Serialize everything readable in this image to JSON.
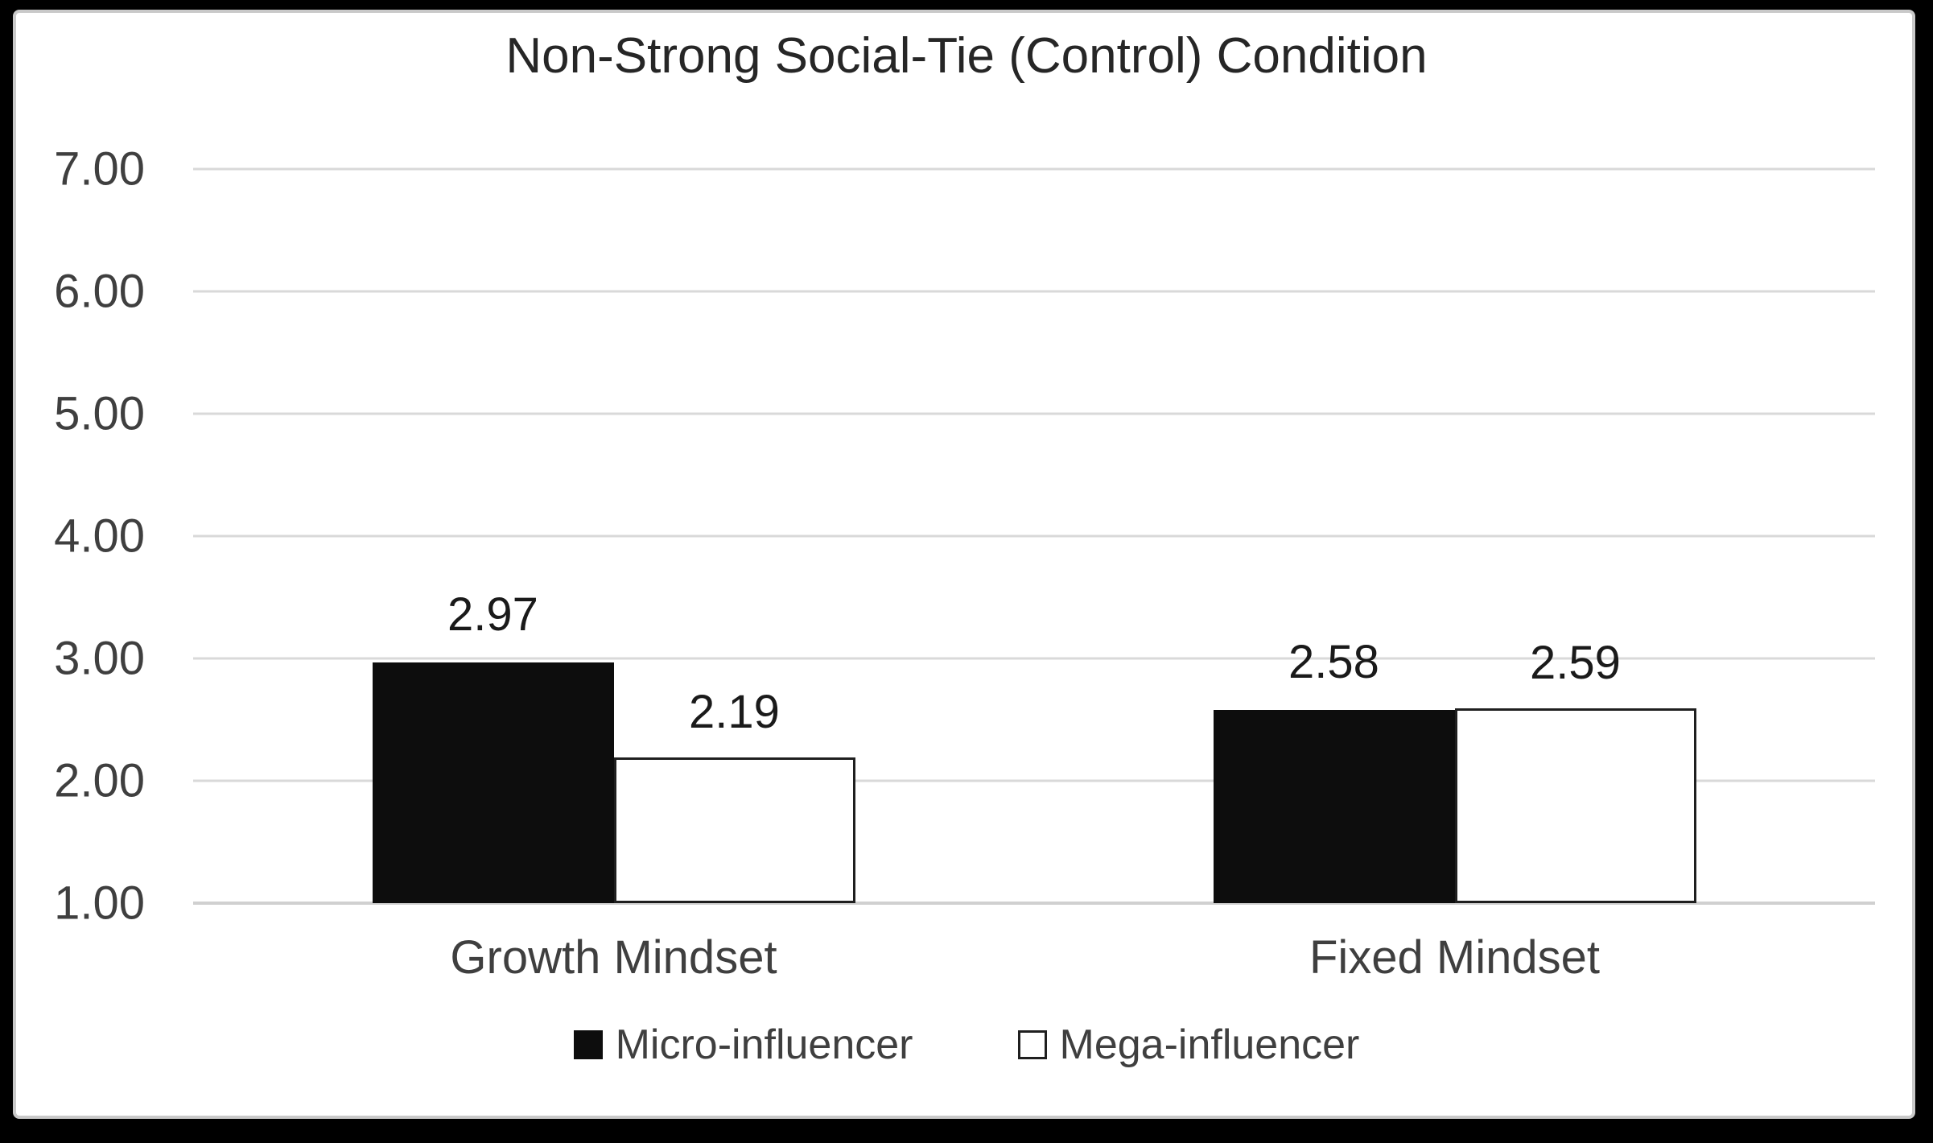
{
  "chart_data": {
    "type": "bar",
    "title": "Non-Strong Social-Tie (Control) Condition",
    "categories": [
      "Growth Mindset",
      "Fixed Mindset"
    ],
    "series": [
      {
        "name": "Micro-influencer",
        "style": "black",
        "values": [
          2.97,
          2.58
        ],
        "labels": [
          "2.97",
          "2.58"
        ]
      },
      {
        "name": "Mega-influencer",
        "style": "white",
        "values": [
          2.19,
          2.59
        ],
        "labels": [
          "2.19",
          "2.59"
        ]
      }
    ],
    "ylabel": "",
    "xlabel": "",
    "ylim": [
      1.0,
      7.0
    ],
    "ytick_step": 1.0,
    "yticks": [
      "7.00",
      "6.00",
      "5.00",
      "4.00",
      "3.00",
      "2.00",
      "1.00"
    ],
    "grid": true,
    "legend_position": "bottom",
    "category_centers_pct": [
      25,
      75
    ]
  },
  "colors": {
    "page_background": "#000000",
    "chart_background": "#ffffff",
    "chart_border": "#c9c9c9",
    "gridline": "#d9d9d9",
    "axis_line": "#d0d0d0",
    "bar_black_fill": "#0d0d0d",
    "bar_white_fill": "#ffffff",
    "bar_white_border": "#1f1f1f",
    "title_text": "#262626",
    "data_label_text": "#1a1a1a",
    "axis_text": "#3f3f3f"
  }
}
